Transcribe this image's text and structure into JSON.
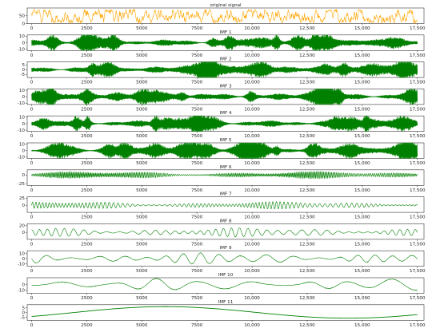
{
  "chart_data": {
    "type": "line",
    "title": "",
    "panels": [
      {
        "title": "original signal",
        "color": "#ffa500",
        "ylim": [
          0,
          100
        ],
        "yticks": [
          0,
          50
        ],
        "kind": "signal"
      },
      {
        "title": "IMF 1",
        "color": "#008000",
        "ylim": [
          -12,
          12
        ],
        "yticks": [
          -10,
          0,
          10
        ],
        "kind": "noise",
        "amp": 6
      },
      {
        "title": "IMF 2",
        "color": "#008000",
        "ylim": [
          -8,
          8
        ],
        "yticks": [
          -5,
          0,
          5
        ],
        "kind": "noise",
        "amp": 4
      },
      {
        "title": "IMF 3",
        "color": "#008000",
        "ylim": [
          -12,
          12
        ],
        "yticks": [
          -10,
          0,
          10
        ],
        "kind": "noise",
        "amp": 6
      },
      {
        "title": "IMF 4",
        "color": "#008000",
        "ylim": [
          -12,
          12
        ],
        "yticks": [
          -10,
          0,
          10
        ],
        "kind": "noise",
        "amp": 6
      },
      {
        "title": "IMF 5",
        "color": "#008000",
        "ylim": [
          -12,
          12
        ],
        "yticks": [
          -10,
          0,
          10
        ],
        "kind": "noise",
        "amp": 7
      },
      {
        "title": "IMF 6",
        "color": "#008000",
        "ylim": [
          -30,
          15
        ],
        "yticks": [
          -25,
          0
        ],
        "kind": "osc",
        "amp": 10,
        "cycles": 260
      },
      {
        "title": "IMF 7",
        "color": "#008000",
        "ylim": [
          -25,
          30
        ],
        "yticks": [
          0,
          25
        ],
        "kind": "osc",
        "amp": 12,
        "cycles": 95
      },
      {
        "title": "IMF 8",
        "color": "#008000",
        "ylim": [
          -20,
          25
        ],
        "yticks": [
          0,
          20
        ],
        "kind": "osc",
        "amp": 12,
        "cycles": 40
      },
      {
        "title": "IMF 9",
        "color": "#008000",
        "ylim": [
          -15,
          15
        ],
        "yticks": [
          -10,
          0,
          10
        ],
        "kind": "osc",
        "amp": 10,
        "cycles": 18
      },
      {
        "title": "IMF 10",
        "color": "#008000",
        "ylim": [
          -15,
          12
        ],
        "yticks": [
          -10,
          0
        ],
        "kind": "osc",
        "amp": 10,
        "cycles": 8
      },
      {
        "title": "IMF 11",
        "color": "#008000",
        "ylim": [
          -8,
          8
        ],
        "yticks": [
          -5,
          0,
          5
        ],
        "kind": "trend"
      }
    ],
    "x": {
      "range": [
        -200,
        17800
      ],
      "ticks": [
        0,
        2500,
        5000,
        7500,
        10000,
        12500,
        15000,
        17500
      ],
      "tick_labels": [
        "0",
        "2500",
        "5000",
        "7500",
        "10,000",
        "12,500",
        "15,000",
        "17,500"
      ]
    },
    "n_points": 17500
  }
}
